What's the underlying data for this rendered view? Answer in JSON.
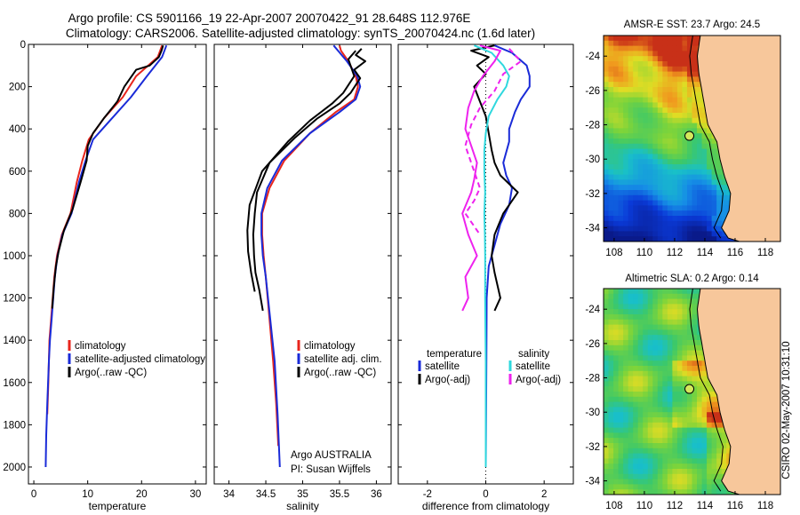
{
  "title_line1": "Argo profile: CS 5901166_19 22-Apr-2007 20070422_91 28.648S 112.976E",
  "title_line2": "Climatology: CARS2006. Satellite-adjusted climatology: synTS_20070424.nc (1.6d later)",
  "colors": {
    "climatology": "#e8251c",
    "satellite": "#1a2bd8",
    "argo": "#000000",
    "sal_satellite": "#2fd8de",
    "sal_argo": "#ee22ee",
    "land": "#f7c79b"
  },
  "chart_data": [
    {
      "type": "line",
      "id": "temperature",
      "xlabel": "temperature",
      "ylabel": "",
      "xlim": [
        -1,
        32
      ],
      "ylim": [
        2080,
        0
      ],
      "y_inverted": true,
      "xticks": [
        0,
        10,
        20,
        30
      ],
      "yticks": [
        0,
        200,
        400,
        600,
        800,
        1000,
        1200,
        1400,
        1600,
        1800,
        2000
      ],
      "legend": [
        "climatology",
        "satellite-adjusted climatology",
        "Argo(..raw -QC)"
      ],
      "legend_position": "lower-right",
      "series": [
        {
          "name": "climatology",
          "color": "#e8251c",
          "dash": "",
          "x": [
            23.8,
            23.0,
            19.0,
            16.5,
            13.0,
            10.2,
            9.0,
            8.0,
            6.8,
            5.2,
            4.3,
            3.8,
            3.5,
            3.2,
            2.9,
            2.7,
            2.5
          ],
          "y": [
            5,
            60,
            150,
            250,
            350,
            450,
            550,
            650,
            800,
            900,
            1000,
            1100,
            1200,
            1300,
            1400,
            1600,
            1750
          ]
        },
        {
          "name": "satellite-adjusted climatology",
          "color": "#1a2bd8",
          "dash": "",
          "x": [
            24.6,
            23.8,
            21.0,
            18.0,
            14.5,
            11.0,
            9.6,
            8.4,
            7.0,
            5.3,
            4.4,
            3.9,
            3.6,
            3.3,
            3.0,
            2.8,
            2.5,
            2.3,
            2.2
          ],
          "y": [
            5,
            60,
            150,
            250,
            350,
            450,
            550,
            650,
            800,
            900,
            1000,
            1100,
            1200,
            1300,
            1400,
            1500,
            1700,
            1850,
            2000
          ]
        },
        {
          "name": "Argo(..raw -QC)",
          "color": "#000000",
          "dash": "",
          "x": [
            24.0,
            23.7,
            23.2,
            21.5,
            19.0,
            16.8,
            15.5,
            13.0,
            11.0,
            10.0,
            9.8,
            8.7,
            7.2,
            5.6,
            4.6,
            4.1,
            3.7,
            3.4
          ],
          "y": [
            5,
            30,
            60,
            100,
            120,
            200,
            270,
            350,
            420,
            480,
            550,
            650,
            780,
            880,
            980,
            1050,
            1150,
            1250
          ]
        }
      ]
    },
    {
      "type": "line",
      "id": "salinity",
      "xlabel": "salinity",
      "ylabel": "",
      "xlim": [
        33.8,
        36.2
      ],
      "ylim": [
        2080,
        0
      ],
      "y_inverted": true,
      "xticks": [
        34,
        34.5,
        35,
        35.5,
        36
      ],
      "yticks": [
        0,
        200,
        400,
        600,
        800,
        1000,
        1200,
        1400,
        1600,
        1800,
        2000
      ],
      "legend": [
        "climatology",
        "satellite adj. clim.",
        "Argo(..raw -QC)"
      ],
      "legend_position": "lower-right",
      "annotations": [
        "Argo AUSTRALIA",
        "PI: Susan Wijffels"
      ],
      "series": [
        {
          "name": "climatology",
          "color": "#e8251c",
          "dash": "",
          "x": [
            35.5,
            35.52,
            35.62,
            35.72,
            35.75,
            35.7,
            35.45,
            35.1,
            34.75,
            34.55,
            34.45,
            34.45,
            34.47,
            34.5,
            34.55,
            34.6,
            34.64,
            34.67
          ],
          "y": [
            5,
            30,
            80,
            150,
            200,
            260,
            320,
            420,
            550,
            680,
            800,
            900,
            1000,
            1100,
            1300,
            1500,
            1700,
            1900
          ]
        },
        {
          "name": "satellite adj. clim.",
          "color": "#1a2bd8",
          "dash": "",
          "x": [
            35.42,
            35.48,
            35.6,
            35.74,
            35.78,
            35.72,
            35.5,
            35.1,
            34.72,
            34.52,
            34.44,
            34.44,
            34.46,
            34.5,
            34.56,
            34.62,
            34.66,
            34.69
          ],
          "y": [
            5,
            30,
            80,
            150,
            200,
            260,
            320,
            420,
            550,
            680,
            800,
            900,
            1000,
            1100,
            1300,
            1500,
            1750,
            2000
          ]
        },
        {
          "name": "Argo(..raw -QC)",
          "color": "#000000",
          "dash": "",
          "x": [
            35.8,
            35.72,
            35.85,
            35.7,
            35.78,
            35.65,
            35.5,
            35.2,
            34.9,
            34.55,
            34.38,
            34.35,
            34.33,
            34.34,
            34.36,
            34.41,
            34.46
          ],
          "y": [
            20,
            50,
            80,
            120,
            160,
            230,
            280,
            350,
            440,
            560,
            700,
            800,
            900,
            1000,
            1080,
            1160,
            1260
          ]
        },
        {
          "name": "Argo",
          "color": "#000000",
          "dash": "",
          "x": [
            35.72,
            35.62,
            35.7,
            35.55,
            35.4,
            35.1,
            34.8,
            34.45,
            34.28,
            34.25,
            34.26,
            34.3,
            34.35
          ],
          "y": [
            30,
            70,
            150,
            230,
            280,
            360,
            460,
            600,
            760,
            880,
            980,
            1080,
            1170
          ]
        }
      ]
    },
    {
      "type": "line",
      "id": "difference",
      "xlabel": "difference from climatology",
      "ylabel": "",
      "xlim": [
        -3,
        3
      ],
      "ylim": [
        2080,
        0
      ],
      "y_inverted": true,
      "xticks": [
        -2,
        0,
        2
      ],
      "yticks": [
        0,
        200,
        400,
        600,
        800,
        1000,
        1200,
        1400,
        1600,
        1800,
        2000
      ],
      "legend_left_header": "temperature",
      "legend_right_header": "salinity",
      "legend": [
        "satellite",
        "Argo(-adj)",
        "satellite",
        "Argo(-adj)"
      ],
      "legend_position": "lower",
      "series": [
        {
          "name": "satellite",
          "color": "#1a2bd8",
          "dash": "",
          "x": [
            0.3,
            0.9,
            1.4,
            1.5,
            1.5,
            1.2,
            1.0,
            0.8,
            0.8,
            0.6,
            0.7,
            0.9,
            0.8,
            0.5,
            0.3,
            0.1,
            0.03,
            0.02,
            0.0
          ],
          "y": [
            5,
            40,
            100,
            150,
            200,
            260,
            320,
            400,
            460,
            560,
            620,
            680,
            760,
            850,
            950,
            1050,
            1200,
            1500,
            2000
          ]
        },
        {
          "name": "Argo(-adj)",
          "color": "#000000",
          "dash": "",
          "x": [
            0.3,
            -0.5,
            0.1,
            -0.3,
            0.0,
            -0.4,
            -0.2,
            0.0,
            0.1,
            0.2,
            0.3,
            0.5,
            1.1,
            0.6,
            0.3,
            0.2,
            0.3,
            0.5,
            0.3
          ],
          "y": [
            5,
            30,
            60,
            100,
            140,
            200,
            270,
            340,
            420,
            500,
            560,
            620,
            700,
            800,
            900,
            1000,
            1080,
            1200,
            1260
          ]
        },
        {
          "name": "satellite",
          "color": "#2fd8de",
          "dash": "",
          "x": [
            -0.4,
            0.2,
            0.6,
            0.8,
            0.7,
            0.4,
            0.1,
            0.0,
            -0.05,
            -0.05,
            -0.02,
            -0.05,
            -0.03,
            -0.02,
            -0.02,
            0.0,
            0.0
          ],
          "y": [
            5,
            40,
            100,
            150,
            200,
            260,
            340,
            420,
            500,
            600,
            700,
            800,
            900,
            1000,
            1200,
            1500,
            2000
          ]
        },
        {
          "name": "Argo(-adj)",
          "color": "#ee22ee",
          "dash": "",
          "x": [
            -0.2,
            0.5,
            0.3,
            -0.1,
            -0.4,
            -0.6,
            -0.7,
            -0.5,
            -0.3,
            -0.4,
            -0.5,
            -0.8,
            -0.6,
            -0.3,
            -0.7,
            -0.6,
            -0.8
          ],
          "y": [
            5,
            30,
            80,
            150,
            220,
            300,
            400,
            480,
            560,
            640,
            700,
            800,
            900,
            1000,
            1100,
            1200,
            1260
          ]
        },
        {
          "name": "Argo(-adj)",
          "color": "#ee22ee",
          "dash": "6,4",
          "x": [
            0.8,
            1.2,
            0.6,
            0.3,
            -0.2,
            -0.5,
            -0.7,
            -0.5,
            -0.2,
            -0.4,
            -0.7,
            -0.4,
            -0.2
          ],
          "y": [
            20,
            80,
            140,
            220,
            300,
            380,
            480,
            560,
            680,
            740,
            800,
            860,
            900
          ]
        }
      ]
    },
    {
      "type": "heatmap",
      "id": "sst_map",
      "title": "AMSR-E SST: 23.7 Argo: 24.5",
      "xlim": [
        107.3,
        119
      ],
      "ylim": [
        -34.8,
        -22.8
      ],
      "xticks": [
        108,
        110,
        112,
        114,
        116,
        118
      ],
      "yticks": [
        -24,
        -26,
        -28,
        -30,
        -32,
        -34
      ],
      "float_position": {
        "lon": 112.976,
        "lat": -28.648
      }
    },
    {
      "type": "heatmap",
      "id": "sla_map",
      "title": "Altimetric SLA: 0.2 Argo: 0.14",
      "xlim": [
        107.3,
        119
      ],
      "ylim": [
        -34.8,
        -22.8
      ],
      "xticks": [
        108,
        110,
        112,
        114,
        116,
        118
      ],
      "yticks": [
        -24,
        -26,
        -28,
        -30,
        -32,
        -34
      ],
      "float_position": {
        "lon": 112.976,
        "lat": -28.648
      }
    }
  ],
  "side_label": "CSIRO 02-May-2007 10:31:10"
}
